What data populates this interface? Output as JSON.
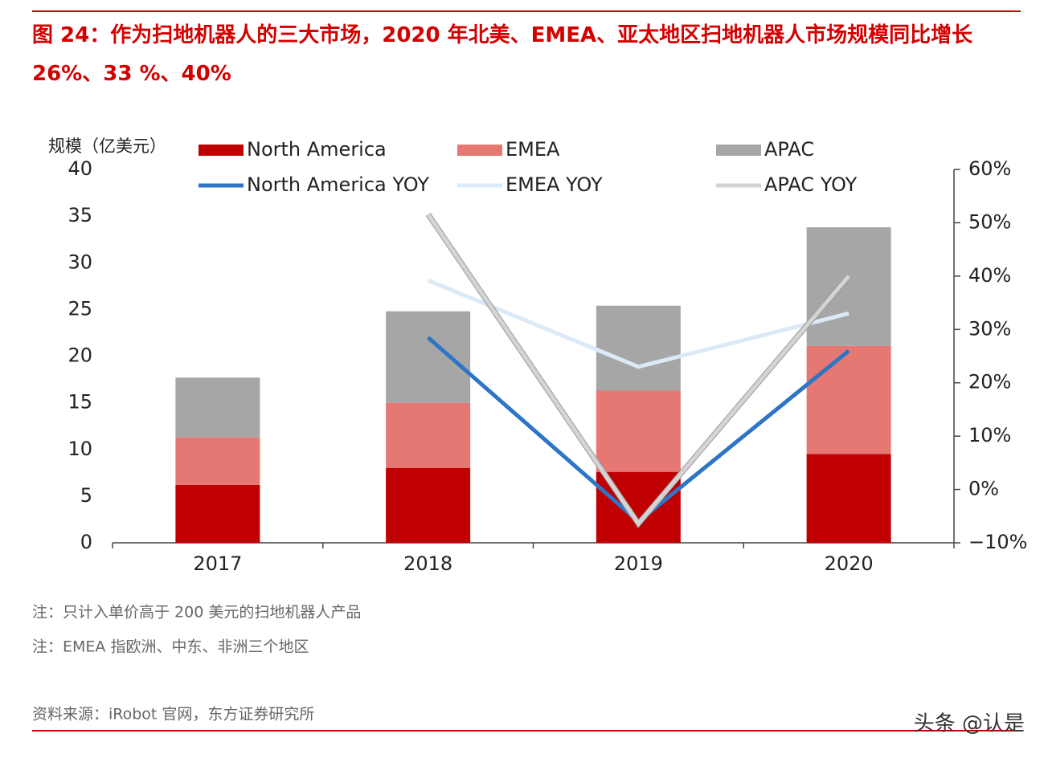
{
  "chart_data": {
    "type": "bar",
    "title": "图 24：作为扫地机器人的三大市场，2020 年北美、EMEA、亚太地区扫地机器人市场规模同比增长 26%、33 %、40%",
    "y_label": "规模（亿美元）",
    "categories": [
      "2017",
      "2018",
      "2019",
      "2020"
    ],
    "series": [
      {
        "name": "North America",
        "type": "bar",
        "color": "#c00000",
        "values": [
          6.2,
          8.0,
          7.6,
          9.5
        ]
      },
      {
        "name": "EMEA",
        "type": "bar",
        "color": "#e57873",
        "values": [
          5.1,
          7.0,
          8.7,
          11.6
        ]
      },
      {
        "name": "APAC",
        "type": "bar",
        "color": "#a6a6a6",
        "values": [
          6.4,
          9.8,
          9.1,
          12.7
        ]
      },
      {
        "name": "North America YOY",
        "type": "line",
        "axis": "y2",
        "color": "#2e75c6",
        "values": [
          null,
          28.5,
          -6,
          26
        ]
      },
      {
        "name": "EMEA YOY",
        "type": "line",
        "axis": "y2",
        "color": "#dce9f6",
        "values": [
          null,
          39.2,
          23,
          33
        ]
      },
      {
        "name": "APAC YOY",
        "type": "line",
        "axis": "y2",
        "color": "#d4d4d4",
        "values": [
          null,
          51.6,
          -6.4,
          40
        ]
      }
    ],
    "ylim": [
      0,
      40
    ],
    "yticks": [
      0,
      5,
      10,
      15,
      20,
      25,
      30,
      35,
      40
    ],
    "y2lim": [
      -10,
      60
    ],
    "y2ticks": [
      {
        "value": -10,
        "label": "−10%"
      },
      {
        "value": 0,
        "label": "0%"
      },
      {
        "value": 10,
        "label": "10%"
      },
      {
        "value": 20,
        "label": "20%"
      },
      {
        "value": 30,
        "label": "30%"
      },
      {
        "value": 40,
        "label": "40%"
      },
      {
        "value": 50,
        "label": "50%"
      },
      {
        "value": 60,
        "label": "60%"
      }
    ],
    "notes": [
      "注：只计入单价高于 200 美元的扫地机器人产品",
      "注：EMEA 指欧洲、中东、非洲三个地区"
    ],
    "source": "资料来源：iRobot 官网，东方证券研究所",
    "watermark": "头条 @认是"
  }
}
